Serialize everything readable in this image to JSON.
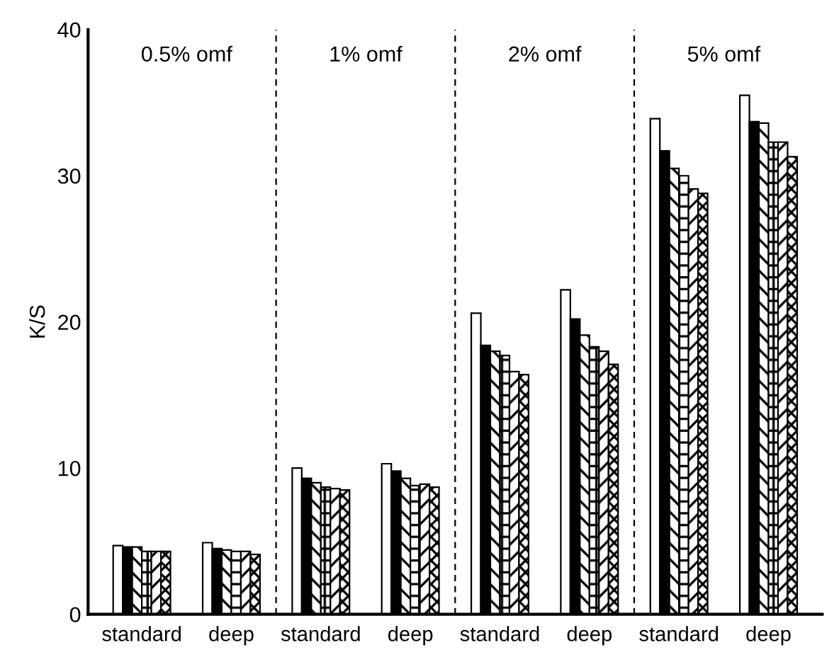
{
  "chart_data": {
    "type": "bar",
    "ylabel": "K/S",
    "categories": [
      "standard",
      "deep",
      "standard",
      "deep",
      "standard",
      "deep",
      "standard",
      "deep"
    ],
    "series": [
      {
        "color": "#ffffff",
        "values": [
          4.7,
          4.9,
          10.0,
          10.3,
          20.6,
          22.2,
          33.9,
          35.5
        ]
      },
      {
        "color": "#000000",
        "values": [
          4.6,
          4.5,
          9.3,
          9.8,
          18.4,
          20.2,
          31.7,
          33.7
        ]
      },
      {
        "color": "#000000",
        "values": [
          4.6,
          4.4,
          9.0,
          9.3,
          18.0,
          19.1,
          30.5,
          33.6
        ]
      },
      {
        "color": "#000000",
        "values": [
          4.3,
          4.3,
          8.7,
          8.8,
          17.7,
          18.3,
          30.0,
          32.3
        ]
      },
      {
        "color": "#000000",
        "values": [
          4.3,
          4.3,
          8.6,
          8.9,
          16.6,
          18.0,
          29.1,
          32.3
        ]
      },
      {
        "color": "#000000",
        "values": [
          4.3,
          4.1,
          8.5,
          8.7,
          16.4,
          17.1,
          28.8,
          31.3
        ]
      }
    ],
    "ylim": [
      0,
      40
    ],
    "yticks": [
      0,
      10,
      20,
      30,
      40
    ],
    "annotations": [
      "0.5% omf",
      "1% omf",
      "2% omf",
      "5% omf"
    ],
    "grid": false,
    "legend": false
  }
}
